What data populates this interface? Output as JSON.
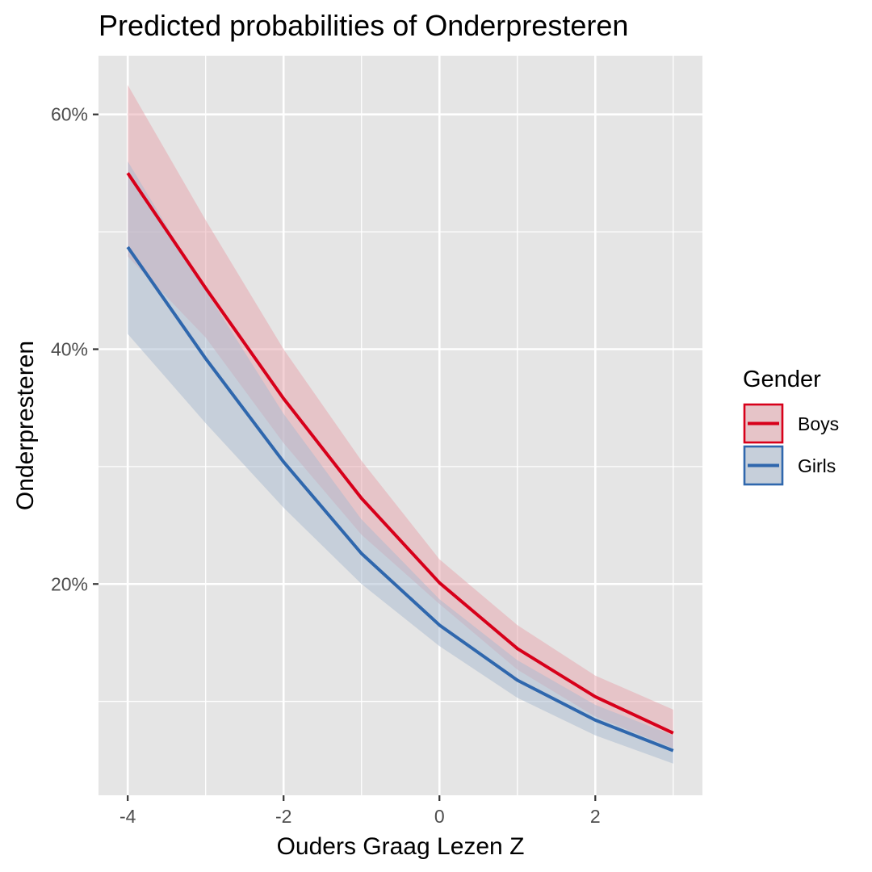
{
  "chart_data": {
    "type": "line",
    "title": "Predicted probabilities of Onderpresteren",
    "xlabel": "Ouders Graag Lezen Z",
    "ylabel": "Onderpresteren",
    "xlim": [
      -4.375,
      3.375
    ],
    "ylim": [
      0.02,
      0.65
    ],
    "x_ticks": [
      -4,
      -2,
      0,
      2
    ],
    "x_tick_labels": [
      "-4",
      "-2",
      "0",
      "2"
    ],
    "y_ticks": [
      0.2,
      0.4,
      0.6
    ],
    "y_tick_labels": [
      "20%",
      "40%",
      "60%"
    ],
    "y_minor_ticks": [
      0.1,
      0.3,
      0.5
    ],
    "x_minor_ticks": [
      -3,
      -1,
      1,
      3
    ],
    "grid": true,
    "legend": {
      "title": "Gender",
      "position": "right"
    },
    "x": [
      -4,
      -3,
      -2,
      -1,
      0,
      1,
      2,
      3
    ],
    "series": [
      {
        "name": "Boys",
        "color": "#d7001a",
        "fill": "#e8a3ab",
        "values": [
          0.55,
          0.452,
          0.358,
          0.273,
          0.201,
          0.145,
          0.104,
          0.073
        ],
        "lower": [
          0.479,
          0.41,
          0.32,
          0.242,
          0.183,
          0.127,
          0.087,
          0.06
        ],
        "upper": [
          0.625,
          0.51,
          0.4,
          0.305,
          0.221,
          0.165,
          0.122,
          0.093
        ]
      },
      {
        "name": "Girls",
        "color": "#2f67ad",
        "fill": "#a8bad0",
        "values": [
          0.487,
          0.392,
          0.304,
          0.226,
          0.165,
          0.118,
          0.084,
          0.058
        ],
        "lower": [
          0.413,
          0.337,
          0.265,
          0.2,
          0.147,
          0.103,
          0.071,
          0.047
        ],
        "upper": [
          0.56,
          0.45,
          0.345,
          0.255,
          0.187,
          0.135,
          0.097,
          0.071
        ]
      }
    ]
  }
}
